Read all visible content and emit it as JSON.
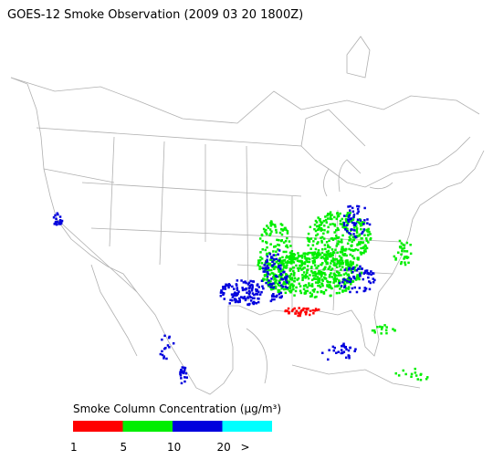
{
  "title": "GOES-12 Smoke Observation (2009 03 20  1800Z)",
  "legend": {
    "title": "Smoke Column Concentration (μg/m³)",
    "labels": [
      "1",
      "5",
      "10",
      "20",
      ">"
    ],
    "colors": [
      "#ff0000",
      "#00ee00",
      "#0000dd",
      "#00ffff"
    ]
  }
}
